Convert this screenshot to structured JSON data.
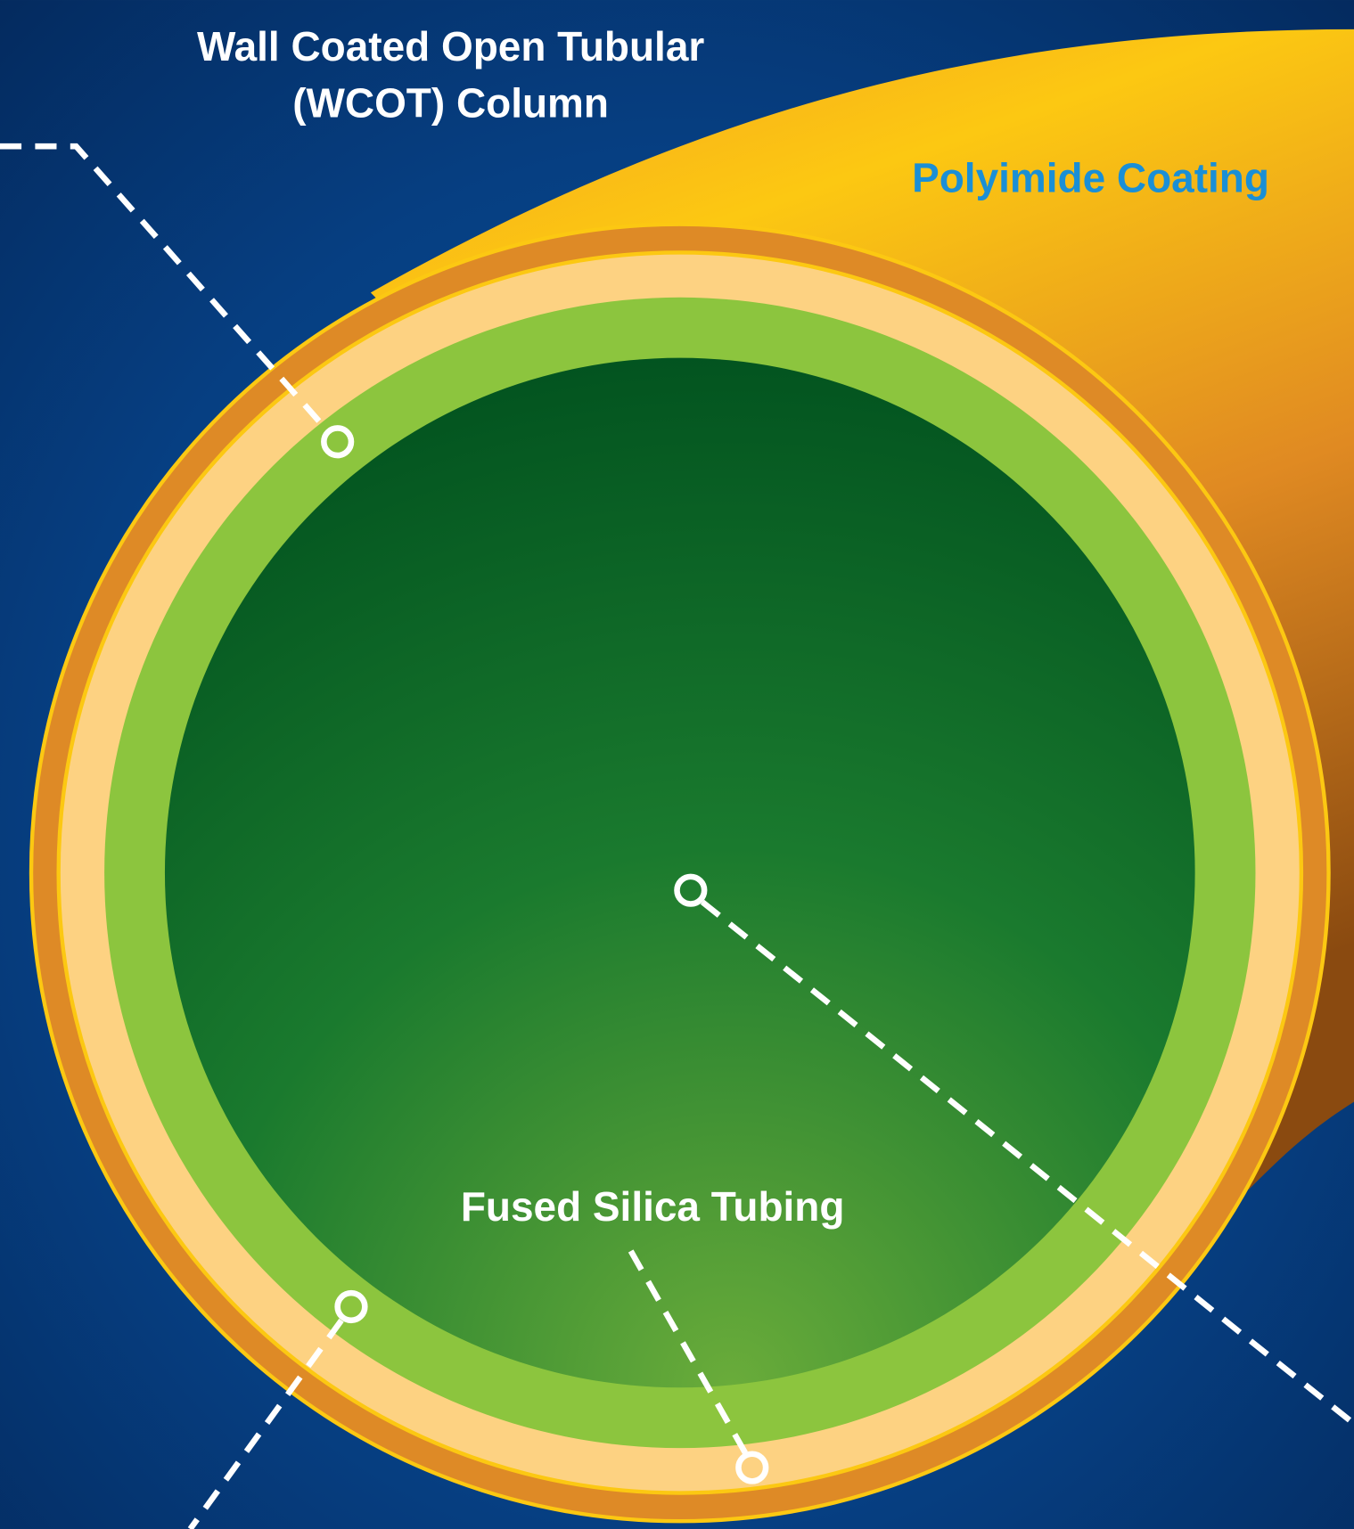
{
  "title": {
    "lines": [
      "Wall Coated Open Tubular",
      "(WCOT) Column"
    ]
  },
  "labels": {
    "coating": "Polyimide Coating",
    "tubing": "Fused Silica Tubing"
  }
}
